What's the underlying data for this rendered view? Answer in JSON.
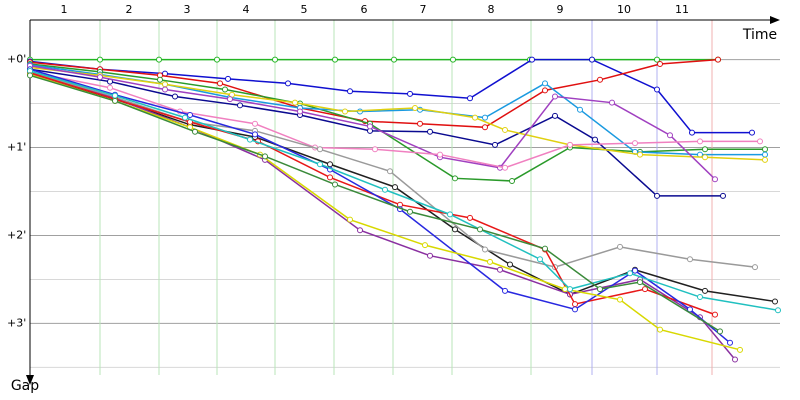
{
  "chart_data": {
    "type": "line",
    "x_label": "Time",
    "y_label": "Gap",
    "xlim": [
      0,
      750
    ],
    "ylim": [
      -0.45,
      3.7
    ],
    "xticks": [
      {
        "value": 34,
        "label": "1"
      },
      {
        "value": 99,
        "label": "2"
      },
      {
        "value": 157,
        "label": "3"
      },
      {
        "value": 216,
        "label": "4"
      },
      {
        "value": 274,
        "label": "5"
      },
      {
        "value": 334,
        "label": "6"
      },
      {
        "value": 393,
        "label": "7"
      },
      {
        "value": 461,
        "label": "8"
      },
      {
        "value": 530,
        "label": "9"
      },
      {
        "value": 594,
        "label": "10"
      },
      {
        "value": 652,
        "label": "11"
      }
    ],
    "lap_lines": [
      70,
      129,
      187,
      245,
      304,
      363,
      422,
      501,
      562,
      627,
      682
    ],
    "lap_line_colors": [
      "#b8e6b8",
      "#b8e6b8",
      "#b8e6b8",
      "#b8e6b8",
      "#b8e6b8",
      "#b8e6b8",
      "#b8e6b8",
      "#b8e6b8",
      "#b0b0f0",
      "#b0b0f0",
      "#f0b0b0"
    ],
    "yticks": [
      {
        "value": 0,
        "label": "+0'"
      },
      {
        "value": 1,
        "label": "+1'"
      },
      {
        "value": 2,
        "label": "+2'"
      },
      {
        "value": 3,
        "label": "+3'"
      }
    ],
    "minor_yticks": [
      0.5,
      1.5,
      2.5,
      3.5
    ],
    "grid": true,
    "series": [
      {
        "color": "#22b522",
        "x": [
          0,
          70,
          129,
          187,
          245,
          305,
          364,
          423,
          500,
          562,
          627,
          688
        ],
        "values": [
          0,
          0,
          0,
          0,
          0,
          0,
          0,
          0,
          0,
          0,
          0,
          0
        ]
      },
      {
        "color": "#1010d0",
        "x": [
          0,
          70,
          135,
          198,
          258,
          320,
          380,
          440,
          502,
          562,
          627,
          662,
          722
        ],
        "values": [
          0.02,
          0.11,
          0.16,
          0.22,
          0.27,
          0.36,
          0.39,
          0.44,
          0,
          0,
          0.34,
          0.83,
          0.83
        ]
      },
      {
        "color": "#e01010",
        "x": [
          0,
          70,
          130,
          190,
          270,
          335,
          390,
          455,
          515,
          570,
          630,
          688
        ],
        "values": [
          0.03,
          0.11,
          0.18,
          0.27,
          0.55,
          0.7,
          0.73,
          0.77,
          0.35,
          0.23,
          0.05,
          0
        ]
      },
      {
        "color": "#2a9a2a",
        "x": [
          0,
          70,
          130,
          195,
          270,
          340,
          425,
          482,
          540,
          610,
          675,
          735
        ],
        "values": [
          0.05,
          0.14,
          0.23,
          0.34,
          0.5,
          0.73,
          1.35,
          1.38,
          1,
          1.05,
          1.02,
          1.02
        ]
      },
      {
        "color": "#1a9ae0",
        "x": [
          0,
          70,
          135,
          200,
          270,
          330,
          390,
          455,
          515,
          550,
          605,
          670,
          735
        ],
        "values": [
          0.06,
          0.17,
          0.28,
          0.43,
          0.55,
          0.59,
          0.57,
          0.66,
          0.27,
          0.57,
          1.05,
          1.08,
          1.08
        ]
      },
      {
        "color": "#0a0a90",
        "x": [
          0,
          80,
          145,
          210,
          270,
          340,
          400,
          465,
          525,
          565,
          627,
          693
        ],
        "values": [
          0.11,
          0.25,
          0.42,
          0.52,
          0.63,
          0.81,
          0.82,
          0.97,
          0.64,
          0.91,
          1.55,
          1.55
        ]
      },
      {
        "color": "#e0d010",
        "x": [
          0,
          70,
          135,
          202,
          265,
          315,
          385,
          445,
          475,
          540,
          610,
          675,
          735
        ],
        "values": [
          0.09,
          0.18,
          0.28,
          0.4,
          0.49,
          0.59,
          0.55,
          0.66,
          0.8,
          0.97,
          1.08,
          1.11,
          1.14
        ]
      },
      {
        "color": "#a040c0",
        "x": [
          0,
          70,
          135,
          200,
          270,
          340,
          410,
          470,
          525,
          582,
          640,
          685
        ],
        "values": [
          0.07,
          0.2,
          0.34,
          0.45,
          0.59,
          0.76,
          1.11,
          1.23,
          0.42,
          0.49,
          0.86,
          1.36
        ]
      },
      {
        "color": "#f080c0",
        "x": [
          0,
          80,
          150,
          225,
          285,
          345,
          410,
          475,
          540,
          605,
          670,
          730
        ],
        "values": [
          0.14,
          0.32,
          0.59,
          0.73,
          1,
          1.02,
          1.08,
          1.23,
          0.97,
          0.95,
          0.93,
          0.93
        ]
      },
      {
        "color": "#202020",
        "x": [
          0,
          85,
          160,
          225,
          300,
          365,
          425,
          480,
          540,
          605,
          675,
          745
        ],
        "values": [
          0.17,
          0.45,
          0.74,
          0.88,
          1.19,
          1.45,
          1.93,
          2.33,
          2.67,
          2.39,
          2.63,
          2.75
        ]
      },
      {
        "color": "#9a9a9a",
        "x": [
          0,
          85,
          160,
          225,
          290,
          360,
          455,
          525,
          590,
          660,
          725
        ],
        "values": [
          0.14,
          0.43,
          0.71,
          0.81,
          1.02,
          1.27,
          2.16,
          2.36,
          2.13,
          2.27,
          2.36
        ]
      },
      {
        "color": "#8a30a0",
        "x": [
          0,
          85,
          160,
          235,
          330,
          400,
          470,
          540,
          610,
          670,
          705
        ],
        "values": [
          0.16,
          0.44,
          0.77,
          1.14,
          1.94,
          2.23,
          2.39,
          2.67,
          2.5,
          2.93,
          3.41
        ]
      },
      {
        "color": "#e81818",
        "x": [
          0,
          85,
          160,
          228,
          300,
          370,
          440,
          515,
          545,
          615,
          685
        ],
        "values": [
          0.15,
          0.45,
          0.71,
          0.93,
          1.34,
          1.65,
          1.8,
          2.16,
          2.78,
          2.61,
          2.9
        ]
      },
      {
        "color": "#2828e0",
        "x": [
          0,
          85,
          160,
          225,
          300,
          370,
          475,
          545,
          605,
          660,
          700
        ],
        "values": [
          0.11,
          0.4,
          0.63,
          0.85,
          1.25,
          1.7,
          2.63,
          2.84,
          2.4,
          2.84,
          3.22
        ]
      },
      {
        "color": "#d8d800",
        "x": [
          0,
          85,
          160,
          230,
          320,
          395,
          460,
          535,
          590,
          630,
          710
        ],
        "values": [
          0.17,
          0.47,
          0.77,
          1.08,
          1.82,
          2.11,
          2.3,
          2.61,
          2.73,
          3.07,
          3.3
        ]
      },
      {
        "color": "#20c0c0",
        "x": [
          0,
          85,
          155,
          220,
          290,
          355,
          420,
          510,
          540,
          600,
          670,
          748
        ],
        "values": [
          0.13,
          0.41,
          0.66,
          0.91,
          1.19,
          1.48,
          1.76,
          2.27,
          2.61,
          2.43,
          2.7,
          2.85
        ]
      },
      {
        "color": "#3a8a3a",
        "x": [
          0,
          85,
          165,
          235,
          305,
          380,
          450,
          515,
          570,
          610,
          690
        ],
        "values": [
          0.18,
          0.47,
          0.82,
          1.1,
          1.42,
          1.73,
          1.93,
          2.15,
          2.61,
          2.53,
          3.09
        ]
      }
    ]
  }
}
